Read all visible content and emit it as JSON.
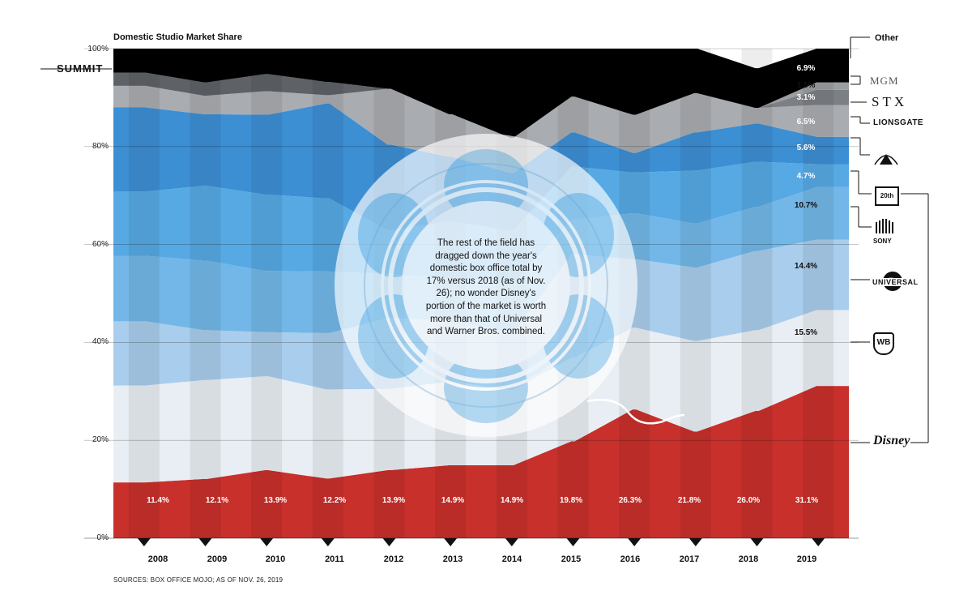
{
  "chart_data": {
    "type": "area",
    "title": "Domestic Studio Market Share",
    "source": "SOURCES: BOX OFFICE MOJO; AS OF NOV. 26, 2019",
    "ylim": [
      0,
      100
    ],
    "yticks": [
      "0%",
      "20%",
      "40%",
      "60%",
      "80%",
      "100%"
    ],
    "categories": [
      "2008",
      "2009",
      "2010",
      "2011",
      "2012",
      "2013",
      "2014",
      "2015",
      "2016",
      "2017",
      "2018",
      "2019"
    ],
    "series": [
      {
        "name": "Disney",
        "values": [
          11.4,
          12.1,
          13.9,
          12.2,
          13.9,
          14.9,
          14.9,
          19.8,
          26.3,
          21.8,
          26.0,
          31.1
        ]
      },
      {
        "name": "Warner Bros.",
        "values": [
          19.8,
          20.2,
          19.2,
          18.2,
          16.6,
          17.1,
          15.4,
          17.1,
          16.7,
          18.5,
          16.5,
          15.5
        ]
      },
      {
        "name": "Universal",
        "values": [
          13.1,
          10.2,
          9.0,
          11.5,
          14.5,
          12.4,
          11.7,
          21.1,
          14.0,
          15.0,
          16.2,
          14.4
        ]
      },
      {
        "name": "Sony",
        "values": [
          13.4,
          14.2,
          12.5,
          12.6,
          9.0,
          8.6,
          10.0,
          7.1,
          9.4,
          9.0,
          9.0,
          10.7
        ]
      },
      {
        "name": "Fox",
        "values": [
          13.1,
          15.3,
          15.6,
          14.9,
          8.9,
          11.7,
          10.8,
          10.8,
          8.3,
          10.8,
          9.2,
          4.7
        ]
      },
      {
        "name": "Paramount",
        "values": [
          17.2,
          14.6,
          16.3,
          19.4,
          17.5,
          13.2,
          11.8,
          7.0,
          4.0,
          7.8,
          7.8,
          5.6
        ]
      },
      {
        "name": "Lionsgate",
        "values": [
          4.4,
          3.8,
          4.8,
          1.7,
          11.4,
          8.7,
          7.2,
          7.3,
          7.8,
          8.0,
          3.2,
          6.5
        ]
      },
      {
        "name": "STX",
        "values": [
          0,
          0,
          0,
          0,
          0,
          0,
          0,
          0,
          0,
          0,
          0,
          3.1
        ]
      },
      {
        "name": "MGM",
        "values": [
          0,
          0,
          0,
          0,
          0,
          0,
          0,
          0,
          0,
          0,
          0,
          1.5
        ]
      },
      {
        "name": "Summit",
        "values": [
          2.7,
          2.7,
          3.5,
          2.7,
          0,
          0,
          0,
          0,
          0,
          0,
          0,
          0
        ]
      },
      {
        "name": "Other",
        "values": [
          4.9,
          6.9,
          5.2,
          8.8,
          8.2,
          13.4,
          18.2,
          9.8,
          13.5,
          9.1,
          8.1,
          6.9
        ]
      }
    ],
    "disney_labels": [
      "11.4%",
      "12.1%",
      "13.9%",
      "12.2%",
      "13.9%",
      "14.9%",
      "14.9%",
      "19.8%",
      "26.3%",
      "21.8%",
      "26.0%",
      "31.1%"
    ],
    "share_labels_2019": {
      "other": "6.9%",
      "mgm": "1.5%",
      "stx": "3.1%",
      "lionsgate": "6.5%",
      "paramount": "5.6%",
      "fox": "4.7%",
      "sony": "10.7%",
      "universal": "14.4%",
      "warner": "15.5%"
    },
    "colors": {
      "disney": "#c8302c",
      "warner": "#e9eef4",
      "universal": "#a9cdec",
      "sony": "#72b7e8",
      "fox": "#57a9e4",
      "paramount": "#3d8fd4",
      "lionsgate": "#a9acb0",
      "stx": "#7c7f84",
      "mgm": "#9b9ea2",
      "summit": "#5e6166",
      "other": "#000000"
    }
  },
  "studio_labels": {
    "summit": "SUMMIT",
    "other": "Other",
    "mgm": "MGM",
    "stx": "STX",
    "lionsgate": "LIONSGATE",
    "sony": "SONY",
    "universal": "UNIVERSAL",
    "wb": "WB",
    "disney": "Disney",
    "fox": "20th"
  },
  "annotation": "The rest of the field has dragged down the year's domestic box office total by 17% versus 2018 (as of Nov. 26); no wonder Disney's portion of the market is worth more than that of Universal and Warner Bros. combined."
}
